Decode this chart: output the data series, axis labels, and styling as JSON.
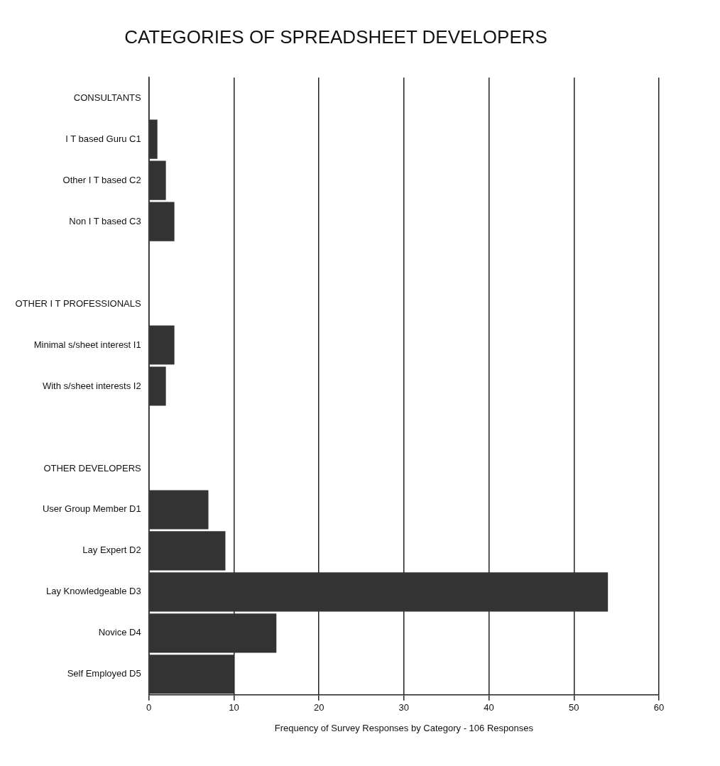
{
  "chart_data": {
    "type": "bar",
    "orientation": "horizontal",
    "title": "CATEGORIES OF SPREADSHEET DEVELOPERS",
    "xlabel": "Frequency of Survey Responses by Category - 106 Responses",
    "categories": [
      "CONSULTANTS",
      "I T based Guru C1",
      "Other I T based C2",
      "Non I T based C3",
      null,
      "OTHER I T PROFESSIONALS",
      "Minimal s/sheet interest I1",
      "With s/sheet interests I2",
      null,
      "OTHER DEVELOPERS",
      "User Group Member D1",
      "Lay Expert D2",
      "Lay Knowledgeable D3",
      "Novice D4",
      "Self Employed D5"
    ],
    "values": [
      null,
      1,
      2,
      3,
      null,
      null,
      3,
      2,
      null,
      null,
      7,
      9,
      54,
      15,
      10
    ],
    "color": "#333333",
    "xlim": [
      0,
      60
    ],
    "xticks": [
      0,
      10,
      20,
      30,
      40,
      50,
      60
    ],
    "grid": "x",
    "legend": false
  }
}
